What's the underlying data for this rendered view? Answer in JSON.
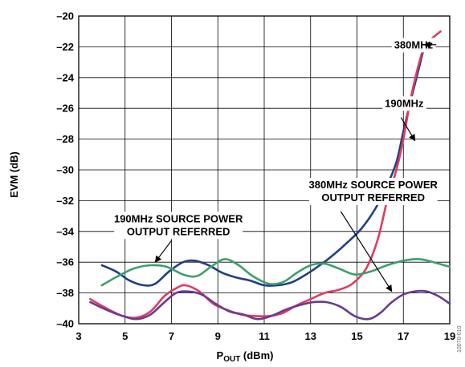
{
  "chart_data": {
    "type": "line",
    "title": "",
    "xlabel": {
      "main": "P",
      "sub": "OUT",
      "rest": " (dBm)"
    },
    "ylabel": "EVM (dB)",
    "xlim": [
      3,
      19
    ],
    "ylim": [
      -40,
      -20
    ],
    "xticks": [
      3,
      5,
      7,
      9,
      11,
      13,
      15,
      17,
      19
    ],
    "yticks": [
      -40,
      -38,
      -36,
      -34,
      -32,
      -30,
      -28,
      -26,
      -24,
      -22,
      -20
    ],
    "xtick_labels": [
      "3",
      "5",
      "7",
      "9",
      "11",
      "13",
      "15",
      "17",
      "19"
    ],
    "ytick_labels": [
      "–40",
      "–38",
      "–36",
      "–34",
      "–32",
      "–30",
      "–28",
      "–26",
      "–24",
      "–22",
      "–20"
    ],
    "grid": true,
    "colors": {
      "navy": "#1f3f86",
      "red": "#e03b5d",
      "green": "#3ba06a",
      "purple": "#6b3a8f"
    },
    "series": [
      {
        "color": "navy",
        "x": [
          4.0,
          4.6,
          5.2,
          5.8,
          6.3,
          6.9,
          7.5,
          8.0,
          8.6,
          9.2,
          9.8,
          10.4,
          11.0,
          11.6,
          12.2,
          12.8,
          13.4,
          14.0,
          14.6,
          15.2,
          15.8,
          16.3,
          16.7,
          17.0,
          17.3,
          17.6,
          17.9
        ],
        "y": [
          -36.2,
          -36.6,
          -37.2,
          -37.5,
          -37.4,
          -36.6,
          -36.0,
          -35.9,
          -36.2,
          -36.7,
          -37.0,
          -37.2,
          -37.5,
          -37.5,
          -37.3,
          -36.8,
          -36.2,
          -35.5,
          -34.7,
          -33.8,
          -32.5,
          -31.0,
          -29.5,
          -27.5,
          -25.6,
          -23.8,
          -22.0
        ]
      },
      {
        "color": "red",
        "x": [
          3.5,
          4.2,
          4.9,
          5.5,
          6.1,
          6.7,
          7.2,
          7.6,
          8.2,
          8.8,
          9.4,
          10.0,
          10.6,
          11.2,
          11.8,
          12.4,
          13.0,
          13.6,
          14.2,
          14.8,
          15.4,
          15.9,
          16.3,
          16.7,
          17.0,
          17.3,
          17.6,
          17.9,
          18.2,
          18.6
        ],
        "y": [
          -38.4,
          -39.0,
          -39.5,
          -39.6,
          -39.2,
          -38.2,
          -37.7,
          -37.5,
          -37.9,
          -38.7,
          -39.1,
          -39.4,
          -39.5,
          -39.5,
          -39.3,
          -38.8,
          -38.4,
          -38.0,
          -37.8,
          -37.4,
          -36.4,
          -34.5,
          -32.0,
          -30.0,
          -28.0,
          -25.5,
          -23.5,
          -22.0,
          -21.5,
          -21.0
        ]
      },
      {
        "color": "green",
        "x": [
          4.0,
          4.7,
          5.4,
          6.1,
          6.8,
          7.5,
          8.1,
          8.7,
          9.3,
          9.9,
          10.5,
          11.2,
          11.8,
          12.4,
          13.0,
          13.6,
          14.2,
          14.9,
          15.6,
          16.3,
          17.0,
          17.7,
          18.3,
          19.0
        ],
        "y": [
          -37.5,
          -36.9,
          -36.4,
          -36.2,
          -36.3,
          -36.8,
          -36.9,
          -36.3,
          -35.8,
          -36.2,
          -36.9,
          -37.4,
          -37.3,
          -36.7,
          -36.2,
          -36.1,
          -36.4,
          -36.8,
          -36.6,
          -36.2,
          -35.9,
          -35.8,
          -36.0,
          -36.3
        ]
      },
      {
        "color": "purple",
        "x": [
          3.5,
          4.2,
          4.9,
          5.5,
          6.1,
          6.7,
          7.2,
          7.7,
          8.3,
          8.9,
          9.5,
          10.1,
          10.7,
          11.3,
          11.9,
          12.5,
          13.1,
          13.7,
          14.3,
          14.9,
          15.5,
          16.0,
          16.5,
          17.0,
          17.5,
          18.0,
          18.5,
          19.0
        ],
        "y": [
          -38.6,
          -39.1,
          -39.5,
          -39.7,
          -39.4,
          -38.6,
          -38.0,
          -37.9,
          -38.1,
          -38.7,
          -39.2,
          -39.4,
          -39.7,
          -39.5,
          -39.1,
          -38.8,
          -38.6,
          -38.6,
          -38.9,
          -39.5,
          -39.7,
          -39.3,
          -38.6,
          -38.1,
          -37.9,
          -37.9,
          -38.2,
          -38.7
        ]
      }
    ],
    "annotations": [
      {
        "lines": [
          "380MHz"
        ],
        "anchor": "start",
        "x": 16.6,
        "y": -22.1,
        "arrow_to": [
          17.9,
          -22.1
        ]
      },
      {
        "lines": [
          "190MHz"
        ],
        "anchor": "start",
        "x": 16.2,
        "y": -25.9,
        "arrow_from": [
          16.9,
          -26.6
        ],
        "arrow_to": [
          17.5,
          -28.1
        ]
      },
      {
        "lines": [
          "380MHz SOURCE POWER",
          "OUTPUT REFERRED"
        ],
        "anchor": "middle",
        "x": 15.7,
        "y": -31.2,
        "arrow_from": [
          14.3,
          -32.7
        ],
        "arrow_to": [
          16.5,
          -37.9
        ]
      },
      {
        "lines": [
          "190MHz SOURCE POWER",
          "OUTPUT REFERRED"
        ],
        "anchor": "middle",
        "x": 7.3,
        "y": -33.4,
        "arrow_from": [
          7.0,
          -34.6
        ],
        "arrow_to": [
          6.3,
          -36.0
        ]
      }
    ],
    "figure_id": "10070-010"
  }
}
